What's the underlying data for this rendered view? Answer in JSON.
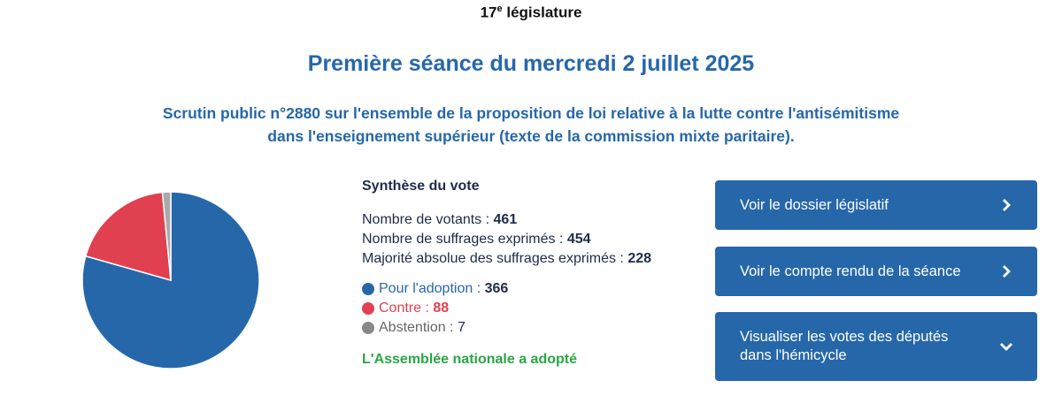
{
  "header": {
    "legislature_number": "17",
    "legislature_sup": "e",
    "legislature_text": "législature",
    "seance_title": "Première séance du mercredi 2 juillet 2025",
    "scrutin_line1": "Scrutin public n°2880 sur l'ensemble de la proposition de loi relative à la lutte contre l'antisémitisme",
    "scrutin_line2": "dans l'enseignement supérieur (texte de la commission mixte paritaire)."
  },
  "synthese": {
    "title": "Synthèse du vote",
    "votants_label": "Nombre de votants :",
    "votants_value": "461",
    "exprimes_label": "Nombre de suffrages exprimés :",
    "exprimes_value": "454",
    "majorite_label": "Majorité absolue des suffrages exprimés :",
    "majorite_value": "228",
    "pour_label": "Pour l'adoption :",
    "pour_value": "366",
    "contre_label": "Contre :",
    "contre_value": "88",
    "abstention_label": "Abstention :",
    "abstention_value": "7",
    "result": "L'Assemblée nationale a adopté"
  },
  "buttons": {
    "dossier": "Voir le dossier législatif",
    "compte_rendu": "Voir le compte rendu de la séance",
    "hemicycle_line1": "Visualiser les votes des députés",
    "hemicycle_line2": "dans l'hémicycle"
  },
  "chart_data": {
    "type": "pie",
    "categories": [
      "Pour l'adoption",
      "Contre",
      "Abstention"
    ],
    "values": [
      366,
      88,
      7
    ],
    "colors": [
      "#2667aa",
      "#e04050",
      "#aaaaaa"
    ]
  }
}
